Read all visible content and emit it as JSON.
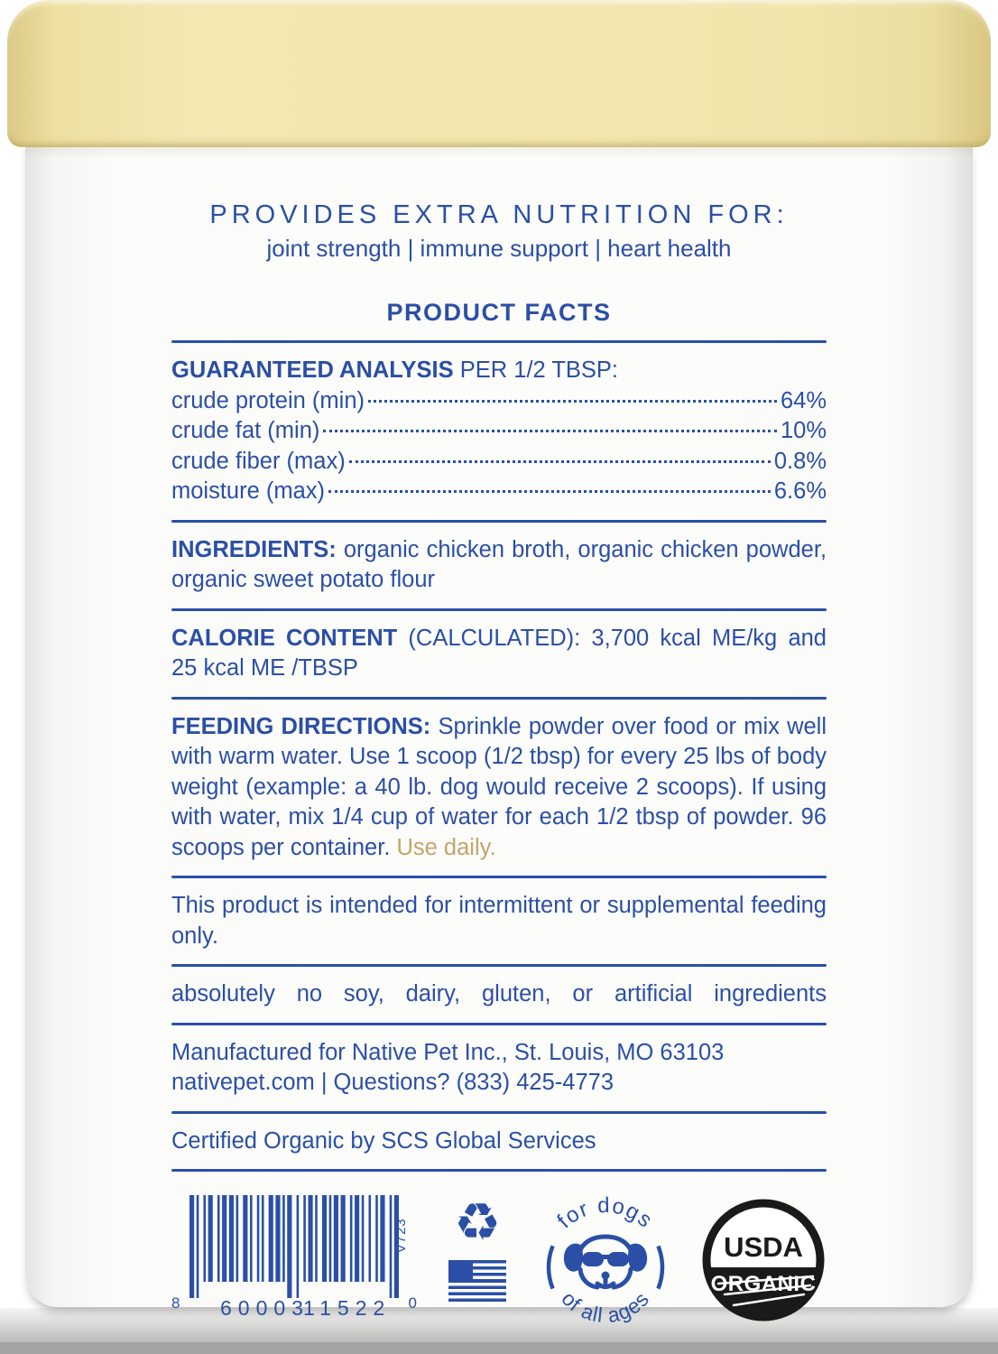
{
  "colors": {
    "blue": "#2b4fa6",
    "gold": "#c2a56a",
    "lid_cream": "#f1e4aa",
    "seal_black": "#1a1a1a"
  },
  "header": {
    "provides_title": "PROVIDES EXTRA NUTRITION FOR:",
    "provides_subtitle": "joint strength | immune support | heart health",
    "product_facts": "PRODUCT FACTS"
  },
  "guaranteed_analysis": {
    "title_bold": "GUARANTEED ANALYSIS",
    "title_rest": " PER 1/2 TBSP:",
    "rows": [
      {
        "label": "crude protein (min)",
        "value": "64%"
      },
      {
        "label": "crude fat (min)",
        "value": "10%"
      },
      {
        "label": "crude fiber (max)",
        "value": "0.8%"
      },
      {
        "label": "moisture (max)",
        "value": "6.6%"
      }
    ]
  },
  "ingredients": {
    "label": "INGREDIENTS:",
    "text": "organic chicken broth, organic chicken powder, organic sweet potato flour"
  },
  "calorie_content": {
    "label": "CALORIE CONTENT",
    "text": "(CALCULATED): 3,700 kcal ME/kg and 25 kcal ME /TBSP"
  },
  "feeding_directions": {
    "label": "FEEDING DIRECTIONS:",
    "text": "Sprinkle powder over food or mix well with warm water. Use 1 scoop (1/2 tbsp) for every 25 lbs of body weight (example: a 40 lb. dog would receive 2 scoops). If using with water, mix 1/4 cup of water for each 1/2 tbsp of powder. 96 scoops per container.",
    "highlight": "Use daily."
  },
  "intermittent_statement": "This product is intended for intermittent or supplemental feeding only.",
  "no_claims": "absolutely no soy, dairy, gluten, or artificial ingredients",
  "manufacturer": {
    "line1": "Manufactured for Native Pet Inc., St. Louis, MO 63103",
    "line2": "nativepet.com | Questions? (833) 425-4773"
  },
  "certification": "Certified Organic by SCS Global Services",
  "footer": {
    "barcode": {
      "digit_left": "8",
      "digits_group1": "60003",
      "digits_group2": "11522",
      "digit_right": "0",
      "version": "V723"
    },
    "recycle_glyph": "♻",
    "badge": {
      "top": "for dogs",
      "bottom": "of all ages"
    },
    "usda": {
      "top": "USDA",
      "bottom": "ORGANIC"
    }
  }
}
